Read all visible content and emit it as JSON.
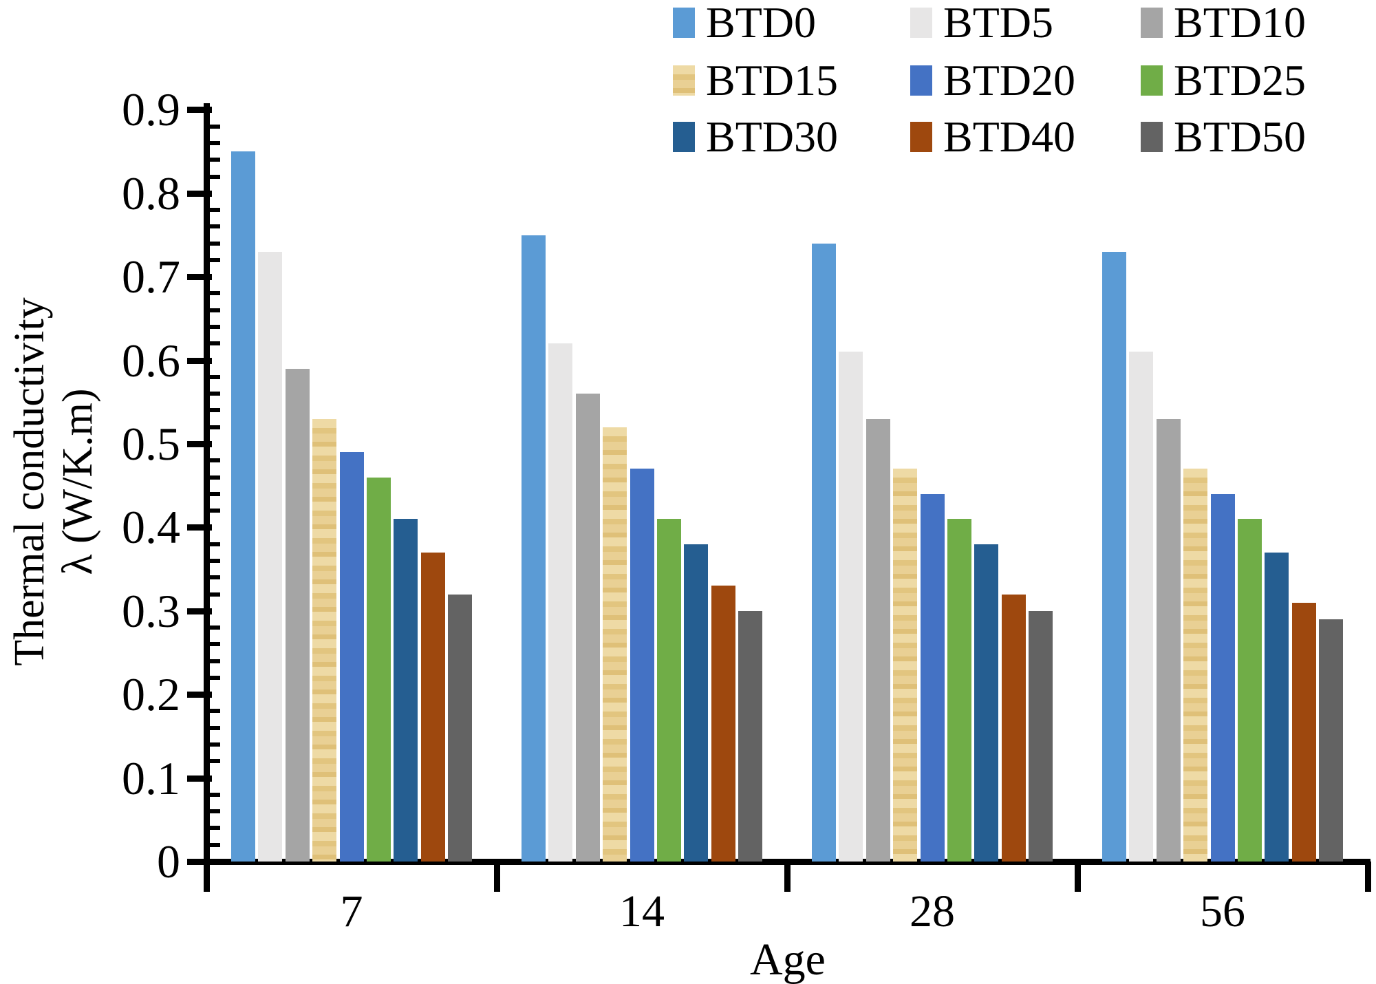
{
  "chart_data": {
    "type": "bar",
    "title": "",
    "xlabel": "Age",
    "ylabel_line1": "Thermal conductivity",
    "ylabel_line2": "λ (W/K.m)",
    "categories": [
      "7",
      "14",
      "28",
      "56"
    ],
    "series": [
      {
        "name": "BTD0",
        "color": "#5B9BD5",
        "textured": false,
        "values": [
          0.85,
          0.75,
          0.74,
          0.73
        ]
      },
      {
        "name": "BTD5",
        "color": "#E7E6E6",
        "textured": false,
        "values": [
          0.73,
          0.62,
          0.61,
          0.61
        ]
      },
      {
        "name": "BTD10",
        "color": "#A5A5A5",
        "textured": false,
        "values": [
          0.59,
          0.56,
          0.53,
          0.53
        ]
      },
      {
        "name": "BTD15",
        "color": "#E6CA8D",
        "textured": true,
        "values": [
          0.53,
          0.52,
          0.47,
          0.47
        ]
      },
      {
        "name": "BTD20",
        "color": "#4472C4",
        "textured": false,
        "values": [
          0.49,
          0.47,
          0.44,
          0.44
        ]
      },
      {
        "name": "BTD25",
        "color": "#70AD47",
        "textured": false,
        "values": [
          0.46,
          0.41,
          0.41,
          0.41
        ]
      },
      {
        "name": "BTD30",
        "color": "#255E91",
        "textured": false,
        "values": [
          0.41,
          0.38,
          0.38,
          0.37
        ]
      },
      {
        "name": "BTD40",
        "color": "#9E480E",
        "textured": false,
        "values": [
          0.37,
          0.33,
          0.32,
          0.31
        ]
      },
      {
        "name": "BTD50",
        "color": "#636363",
        "textured": false,
        "values": [
          0.32,
          0.3,
          0.3,
          0.29
        ]
      }
    ],
    "ylim": [
      0,
      0.9
    ],
    "y_major_step": 0.1,
    "y_minor_step": 0.02,
    "y_tick_labels": [
      "0",
      "0.1",
      "0.2",
      "0.3",
      "0.4",
      "0.5",
      "0.6",
      "0.7",
      "0.8",
      "0.9"
    ],
    "legend_position": "top",
    "grid": false,
    "axis_color": "#000000"
  }
}
